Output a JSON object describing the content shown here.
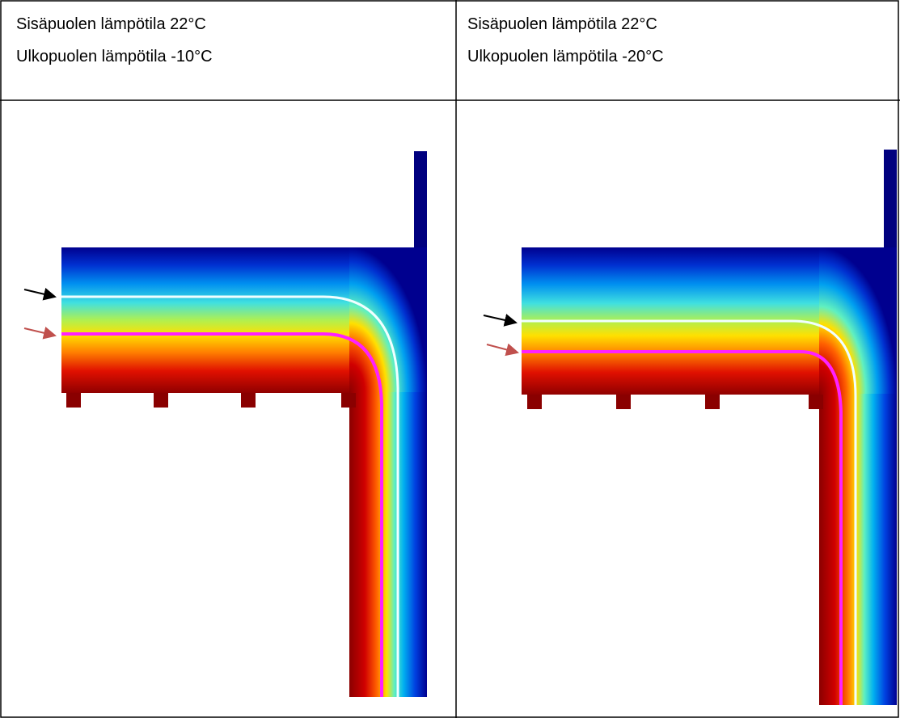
{
  "table": {
    "header": [
      [
        "Sisäpuolen lämpötila 22°C",
        "Ulkopuolen lämpötila -10°C"
      ],
      [
        "Sisäpuolen lämpötila 22°C",
        "Ulkopuolen lämpötila -20°C"
      ]
    ]
  }
}
